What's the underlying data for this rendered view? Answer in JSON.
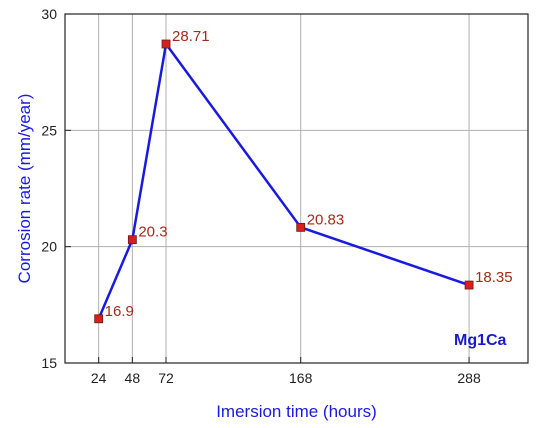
{
  "chart_data": {
    "type": "line",
    "x": [
      24,
      48,
      72,
      168,
      288
    ],
    "series": [
      {
        "values": [
          16.9,
          20.3,
          28.71,
          20.83,
          18.35
        ]
      }
    ],
    "data_labels": [
      "16.9",
      "20.3",
      "28.71",
      "20.83",
      "18.35"
    ],
    "xlabel": "Imersion time (hours)",
    "ylabel": "Corrosion rate (mm/year)",
    "xticks": [
      24,
      48,
      72,
      168,
      288
    ],
    "xtick_labels": [
      "24",
      "48",
      "72",
      "168",
      "288"
    ],
    "yticks": [
      15,
      20,
      25,
      30
    ],
    "ytick_labels": [
      "15",
      "20",
      "25",
      "30"
    ],
    "xlim": [
      0,
      330
    ],
    "ylim": [
      15,
      30
    ],
    "grid": true,
    "annotation": "Mg1Ca",
    "colors": {
      "line": "#1a1adf",
      "marker": "#d62020",
      "label": "#a52a1a",
      "axis_label": "#1a1adf"
    }
  }
}
